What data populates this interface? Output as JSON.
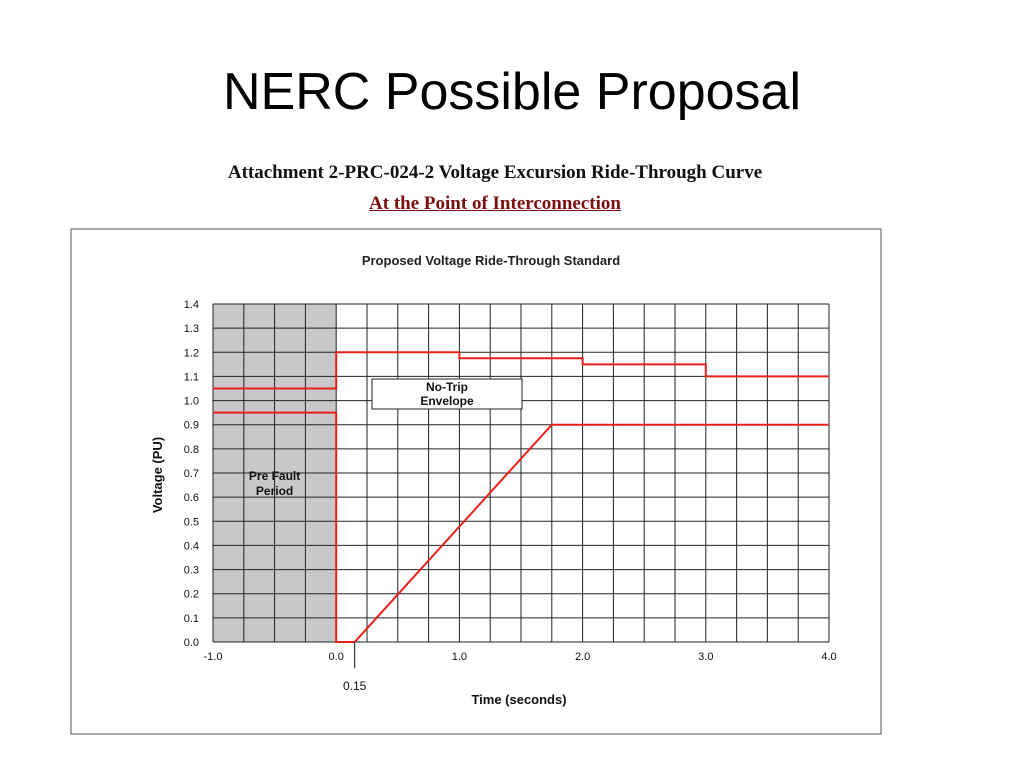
{
  "slide": {
    "title": "NERC Possible Proposal"
  },
  "header": {
    "line1": "Attachment 2-PRC-024-2 Voltage Excursion Ride-Through Curve",
    "line2": "At the Point of Interconnection"
  },
  "chart_data": {
    "type": "line",
    "title": "Proposed Voltage Ride-Through Standard",
    "xlabel": "Time (seconds)",
    "ylabel": "Voltage (PU)",
    "xlim": [
      -1.0,
      4.0
    ],
    "ylim": [
      0.0,
      1.4
    ],
    "grid": true,
    "x_ticks": [
      -1.0,
      0.0,
      1.0,
      2.0,
      3.0,
      4.0
    ],
    "x_tick_labels": [
      "-1.0",
      "0.0",
      "1.0",
      "2.0",
      "3.0",
      "4.0"
    ],
    "y_ticks": [
      0.0,
      0.1,
      0.2,
      0.3,
      0.4,
      0.5,
      0.6,
      0.7,
      0.8,
      0.9,
      1.0,
      1.1,
      1.2,
      1.3,
      1.4
    ],
    "y_tick_labels": [
      "0.0",
      "0.1",
      "0.2",
      "0.3",
      "0.4",
      "0.5",
      "0.6",
      "0.7",
      "0.8",
      "0.9",
      "1.0",
      "1.1",
      "1.2",
      "1.3",
      "1.4"
    ],
    "series": [
      {
        "color": "#e8201c",
        "points": [
          [
            -1.0,
            1.05
          ],
          [
            0.0,
            1.05
          ],
          [
            0.0,
            1.2
          ],
          [
            1.0,
            1.2
          ],
          [
            1.0,
            1.175
          ],
          [
            2.0,
            1.175
          ],
          [
            2.0,
            1.15
          ],
          [
            3.0,
            1.15
          ],
          [
            3.0,
            1.1
          ],
          [
            4.0,
            1.1
          ]
        ]
      },
      {
        "color": "#e8201c",
        "points": [
          [
            -1.0,
            0.95
          ],
          [
            0.0,
            0.95
          ],
          [
            0.0,
            0.0
          ],
          [
            0.15,
            0.0
          ],
          [
            1.75,
            0.9
          ],
          [
            4.0,
            0.9
          ]
        ]
      }
    ],
    "shaded_region": {
      "x_from": -1.0,
      "x_to": 0.0,
      "label_line1": "Pre Fault",
      "label_line2": "Period",
      "color": "#c8c8c8"
    },
    "annotations": [
      {
        "text_line1": "No-Trip",
        "text_line2": "Envelope"
      },
      {
        "text": "0.15",
        "x": 0.15
      }
    ]
  }
}
